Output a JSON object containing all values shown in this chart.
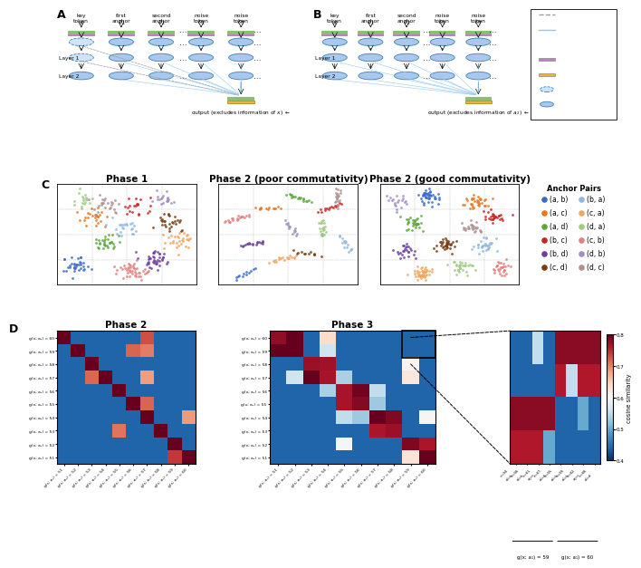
{
  "legend_colors_left": [
    "#3B6BC8",
    "#E87820",
    "#5BA83A",
    "#CC2222",
    "#6B3FA0",
    "#7A3C10"
  ],
  "legend_colors_right": [
    "#90B8E0",
    "#F0A860",
    "#A0CC80",
    "#E08080",
    "#A090C0",
    "#B09090"
  ],
  "legend_items_left": [
    "(a, b)",
    "(a, c)",
    "(a, d)",
    "(b, c)",
    "(b, d)",
    "(c, d)"
  ],
  "legend_items_right": [
    "(b, a)",
    "(c, a)",
    "(d, a)",
    "(c, b)",
    "(d, b)",
    "(d, c)"
  ],
  "colorbar_vmin": 0.4,
  "colorbar_vmax": 0.8,
  "node_color": "#A8C8F0",
  "node_edge_color": "#4080B0",
  "masked_node_color": "#D0E4F8",
  "embed_green": "#88C070",
  "embed_purple": "#C080C8",
  "layernorm_orange": "#F0B040",
  "masked_circuit_color": "#A0A0A0",
  "normal_circuit_color": "#90C8F0"
}
